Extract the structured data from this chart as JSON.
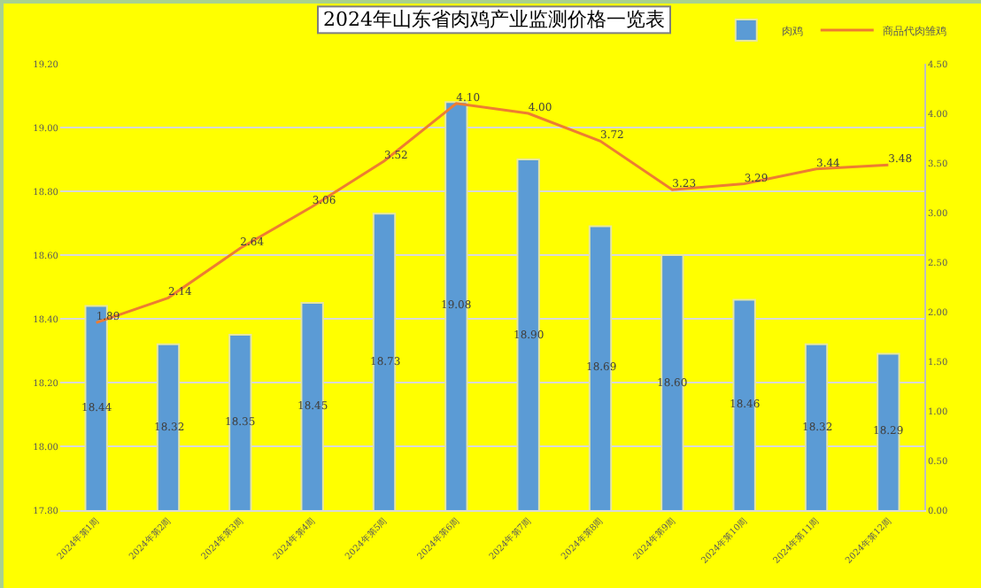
{
  "chart_data": {
    "type": "bar",
    "title": "2024年山东省肉鸡产业监测价格一览表",
    "categories": [
      "2024年第1周",
      "2024年第2周",
      "2024年第3周",
      "2024年第4周",
      "2024年第5周",
      "2024年第6周",
      "2024年第7周",
      "2024年第8周",
      "2024年第9周",
      "2024年第10周",
      "2024年第11周",
      "2024年第12周"
    ],
    "series": [
      {
        "name": "肉鸡",
        "color": "#5b9bd5",
        "values": [
          18.44,
          18.32,
          18.35,
          18.45,
          18.73,
          19.08,
          18.9,
          18.69,
          18.6,
          18.46,
          18.32,
          18.29
        ],
        "value_labels": [
          "18.44",
          "18.32",
          "18.35",
          "18.45",
          "18.73",
          "19.08",
          "18.90",
          "18.69",
          "18.60",
          "18.46",
          "18.32",
          "18.29"
        ]
      },
      {
        "name": "商品代肉雏鸡",
        "type": "line",
        "axis": "y2",
        "color": "#ed7d31",
        "values": [
          1.89,
          2.14,
          2.64,
          3.06,
          3.52,
          4.1,
          4.0,
          3.72,
          3.23,
          3.29,
          3.44,
          3.48
        ],
        "value_labels": [
          "1.89",
          "2.14",
          "2.64",
          "3.06",
          "3.52",
          "4.10",
          "4.00",
          "3.72",
          "3.23",
          "3.29",
          "3.44",
          "3.48"
        ]
      }
    ],
    "ylim": [
      17.8,
      19.2
    ],
    "yticks": [
      {
        "value": 17.8,
        "label": "17.80"
      },
      {
        "value": 18.0,
        "label": "18.00"
      },
      {
        "value": 18.2,
        "label": "18.20"
      },
      {
        "value": 18.4,
        "label": "18.40"
      },
      {
        "value": 18.6,
        "label": "18.60"
      },
      {
        "value": 18.8,
        "label": "18.80"
      },
      {
        "value": 19.0,
        "label": "19.00"
      },
      {
        "value": 19.2,
        "label": "19.20"
      }
    ],
    "y2lim": [
      0,
      4.5
    ],
    "y2ticks": [
      {
        "value": 0,
        "label": "0.00"
      },
      {
        "value": 0.5,
        "label": "0.50"
      },
      {
        "value": 1,
        "label": "1.00"
      },
      {
        "value": 1.5,
        "label": "1.50"
      },
      {
        "value": 2,
        "label": "2.00"
      },
      {
        "value": 2.5,
        "label": "2.50"
      },
      {
        "value": 3,
        "label": "3.00"
      },
      {
        "value": 3.5,
        "label": "3.50"
      },
      {
        "value": 4,
        "label": "4.00"
      },
      {
        "value": 4.5,
        "label": "4.50"
      }
    ],
    "grid": "y",
    "legend": "top right",
    "marker": "none",
    "line_style": "solid"
  }
}
